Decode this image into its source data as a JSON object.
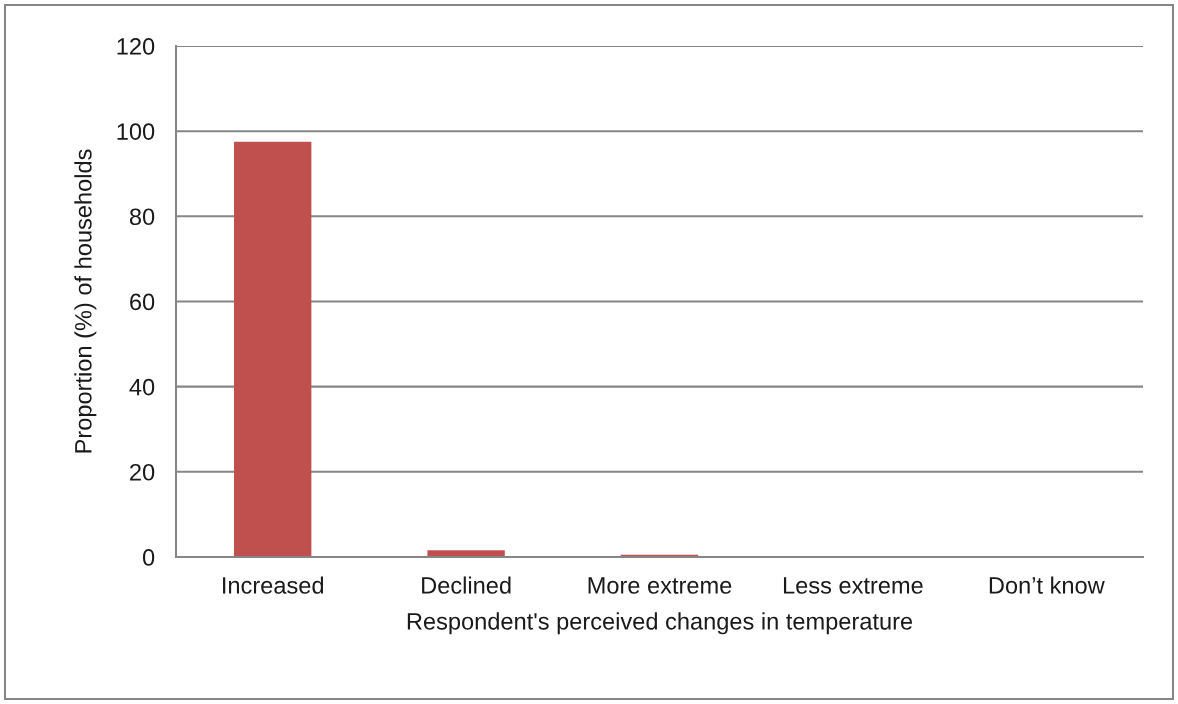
{
  "chart_data": {
    "type": "bar",
    "xlabel": "Respondent's perceived changes in temperature",
    "ylabel": "Proportion (%) of households",
    "categories": [
      "Increased",
      "Declined",
      "More extreme",
      "Less extreme",
      "Don’t know"
    ],
    "values": [
      97.5,
      1.6,
      0.5,
      0,
      0
    ],
    "color": "#c0504d",
    "ylim": [
      0,
      120
    ],
    "yticks": [
      0,
      20,
      40,
      60,
      80,
      100,
      120
    ],
    "grid": "y"
  }
}
